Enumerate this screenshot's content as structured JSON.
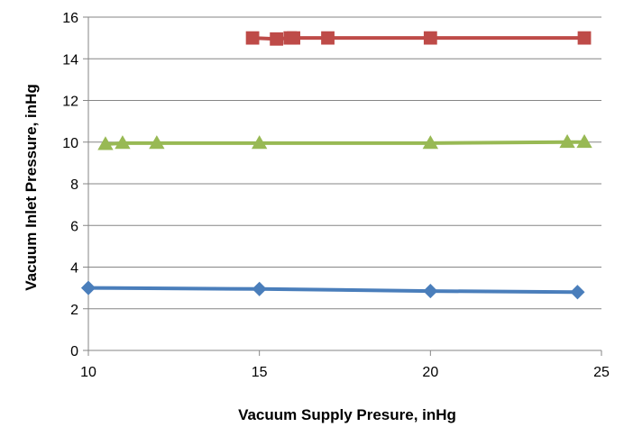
{
  "chart_data": {
    "type": "line",
    "title": "",
    "xlabel": "Vacuum Supply Presure, inHg",
    "ylabel": "Vacuum Inlet Pressure, inHg",
    "xlim": [
      10,
      25
    ],
    "ylim": [
      0,
      16
    ],
    "xticks": [
      10,
      15,
      20,
      25
    ],
    "yticks": [
      0,
      2,
      4,
      6,
      8,
      10,
      12,
      14,
      16
    ],
    "grid": "horizontal",
    "legend": "none",
    "series": [
      {
        "color": "#4a7ebb",
        "marker": "diamond",
        "points": [
          [
            10,
            3.0
          ],
          [
            15,
            2.95
          ],
          [
            20,
            2.85
          ],
          [
            24.3,
            2.8
          ]
        ]
      },
      {
        "color": "#be4b48",
        "marker": "square",
        "points": [
          [
            14.8,
            15.0
          ],
          [
            15.5,
            14.95
          ],
          [
            15.9,
            15.0
          ],
          [
            16.0,
            15.0
          ],
          [
            17.0,
            15.0
          ],
          [
            20.0,
            15.0
          ],
          [
            24.5,
            15.0
          ]
        ]
      },
      {
        "color": "#98b954",
        "marker": "triangle",
        "points": [
          [
            10.5,
            9.9
          ],
          [
            11.0,
            9.95
          ],
          [
            12.0,
            9.95
          ],
          [
            15.0,
            9.95
          ],
          [
            20.0,
            9.95
          ],
          [
            24.0,
            10.0
          ],
          [
            24.5,
            10.0
          ]
        ]
      }
    ]
  }
}
